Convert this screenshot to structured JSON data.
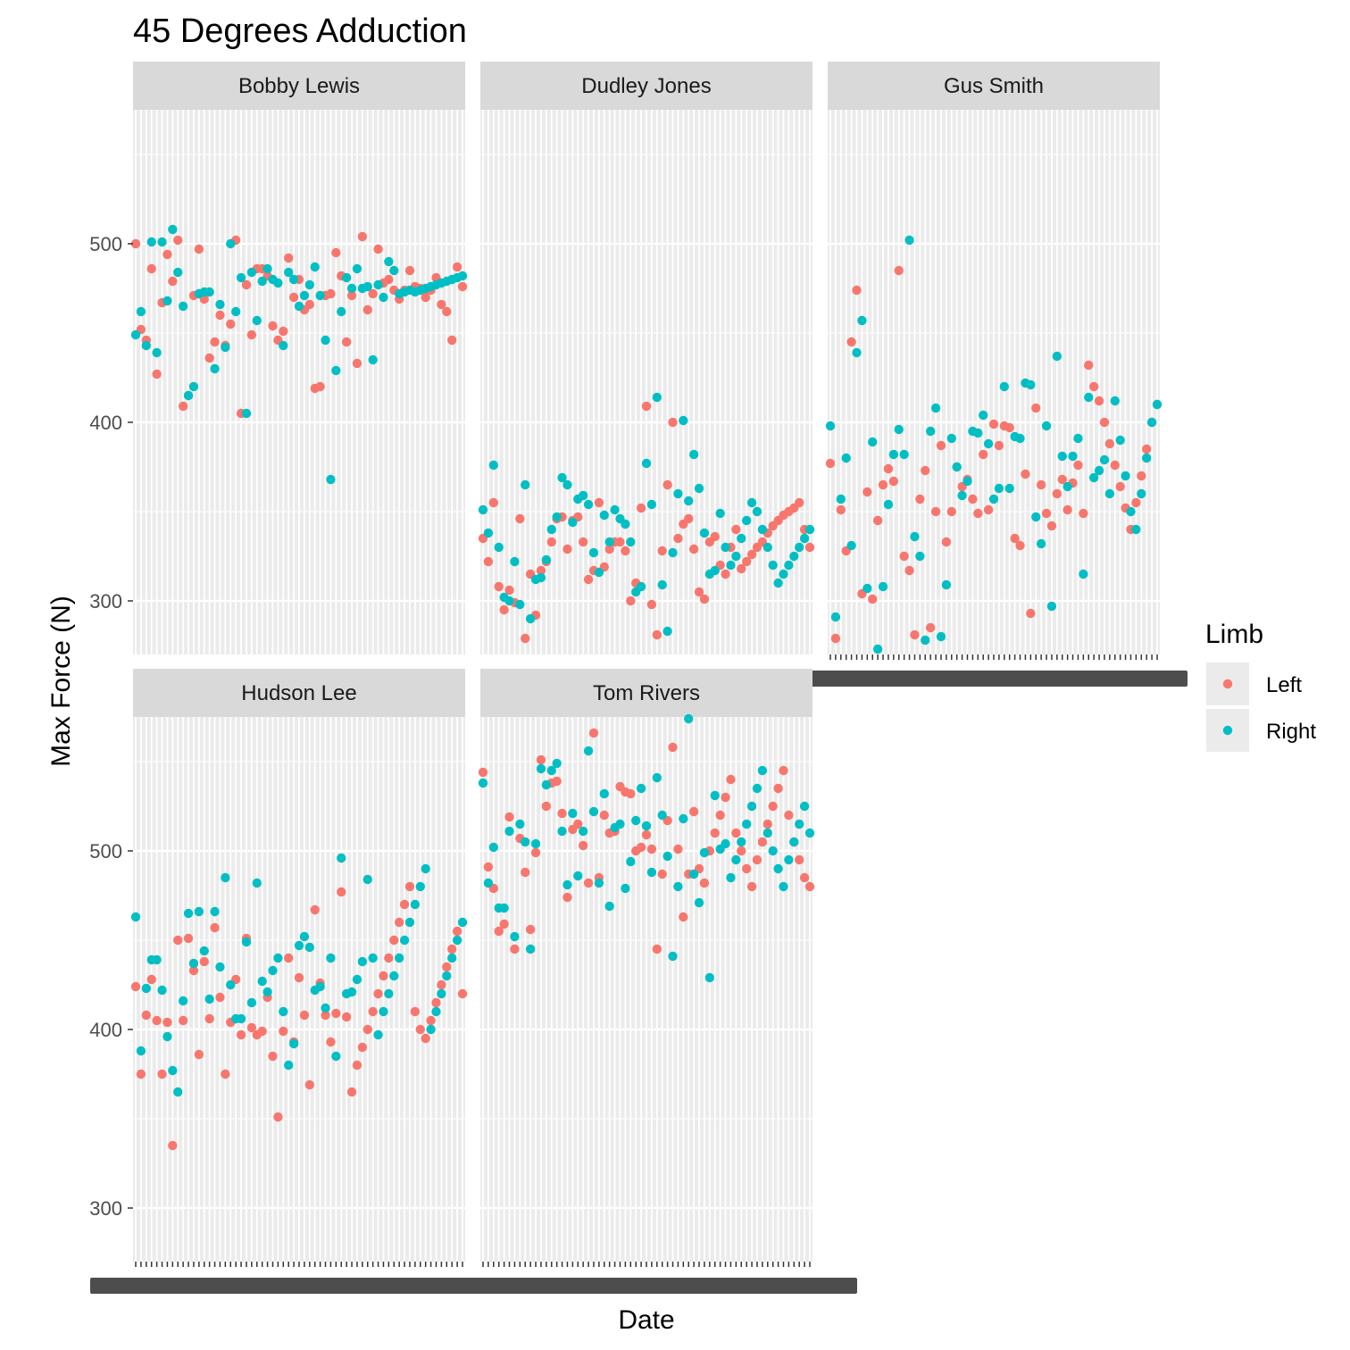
{
  "chart_data": {
    "type": "scatter",
    "title": "45 Degrees Adduction",
    "xlabel": "Date",
    "ylabel": "Max Force (N)",
    "ylim": [
      270,
      575
    ],
    "y_ticks": [
      300,
      400,
      500
    ],
    "grid": true,
    "x_axis_note": "discrete date axis, tick labels overprinted and illegible",
    "legend": {
      "title": "Limb",
      "position": "right",
      "entries": [
        {
          "name": "Left",
          "color": "#F8766D"
        },
        {
          "name": "Right",
          "color": "#00BFC4"
        }
      ]
    },
    "panels": [
      {
        "name": "Bobby Lewis",
        "n_dates": 63,
        "series": [
          {
            "name": "Left",
            "y": [
              500,
              452,
              446,
              486,
              427,
              467,
              494,
              479,
              502,
              409,
              415,
              471,
              497,
              469,
              436,
              445,
              460,
              443,
              455,
              502,
              405,
              477,
              449,
              486,
              486,
              482,
              454,
              446,
              451,
              492,
              470,
              480,
              463,
              466,
              419,
              420,
              471,
              472,
              495,
              482,
              445,
              471,
              433,
              504,
              463,
              472,
              497,
              478,
              480,
              474,
              469,
              474,
              485,
              476,
              475,
              470,
              474,
              481,
              466,
              462,
              446,
              487,
              476
            ]
          },
          {
            "name": "Right",
            "y": [
              449,
              462,
              443,
              501,
              439,
              501,
              468,
              508,
              484,
              465,
              415,
              420,
              472,
              473,
              473,
              430,
              466,
              442,
              500,
              462,
              481,
              405,
              484,
              457,
              479,
              486,
              480,
              478,
              443,
              484,
              480,
              465,
              471,
              477,
              487,
              471,
              446,
              368,
              429,
              462,
              481,
              475,
              486,
              475,
              476,
              435,
              477,
              470,
              490,
              485,
              472,
              473,
              474,
              473,
              474,
              475,
              476,
              477,
              478,
              479,
              480,
              481,
              482
            ]
          }
        ]
      },
      {
        "name": "Dudley Jones",
        "n_dates": 63,
        "series": [
          {
            "name": "Left",
            "y": [
              335,
              322,
              355,
              308,
              295,
              306,
              299,
              346,
              279,
              315,
              292,
              317,
              322,
              333,
              346,
              347,
              329,
              345,
              347,
              333,
              312,
              317,
              355,
              319,
              329,
              333,
              333,
              328,
              300,
              310,
              352,
              409,
              298,
              281,
              328,
              365,
              400,
              335,
              343,
              346,
              329,
              305,
              301,
              333,
              336,
              320,
              315,
              330,
              340,
              318,
              322,
              326,
              330,
              333,
              338,
              342,
              345,
              348,
              350,
              352,
              355,
              340,
              330
            ]
          },
          {
            "name": "Right",
            "y": [
              351,
              338,
              376,
              330,
              302,
              300,
              322,
              298,
              365,
              290,
              312,
              313,
              323,
              340,
              347,
              369,
              365,
              344,
              357,
              359,
              354,
              327,
              316,
              348,
              333,
              351,
              346,
              343,
              333,
              305,
              308,
              377,
              354,
              414,
              309,
              283,
              327,
              360,
              401,
              356,
              382,
              363,
              338,
              315,
              317,
              349,
              330,
              320,
              325,
              335,
              345,
              355,
              350,
              340,
              330,
              320,
              310,
              315,
              320,
              325,
              330,
              335,
              340
            ]
          }
        ]
      },
      {
        "name": "Gus Smith",
        "n_dates": 63,
        "series": [
          {
            "name": "Left",
            "y": [
              377,
              279,
              351,
              328,
              445,
              474,
              304,
              361,
              301,
              345,
              365,
              374,
              367,
              485,
              325,
              317,
              281,
              357,
              373,
              285,
              350,
              387,
              333,
              350,
              375,
              364,
              368,
              357,
              349,
              382,
              351,
              399,
              387,
              398,
              397,
              335,
              331,
              371,
              293,
              408,
              365,
              349,
              342,
              360,
              368,
              351,
              366,
              376,
              349,
              432,
              420,
              412,
              400,
              388,
              376,
              364,
              352,
              340,
              355,
              370,
              385,
              400,
              410
            ]
          },
          {
            "name": "Right",
            "y": [
              398,
              291,
              357,
              380,
              331,
              439,
              457,
              307,
              389,
              273,
              308,
              354,
              382,
              396,
              382,
              502,
              336,
              325,
              278,
              395,
              408,
              280,
              309,
              391,
              375,
              359,
              367,
              395,
              394,
              404,
              388,
              357,
              363,
              420,
              363,
              392,
              391,
              422,
              421,
              347,
              332,
              398,
              297,
              437,
              381,
              364,
              381,
              391,
              315,
              414,
              369,
              373,
              379,
              360,
              412,
              390,
              370,
              350,
              340,
              360,
              380,
              400,
              410
            ]
          }
        ]
      },
      {
        "name": "Hudson Lee",
        "n_dates": 63,
        "series": [
          {
            "name": "Left",
            "y": [
              424,
              375,
              408,
              428,
              405,
              375,
              404,
              335,
              450,
              405,
              451,
              433,
              386,
              438,
              406,
              457,
              418,
              375,
              404,
              428,
              397,
              451,
              401,
              397,
              399,
              418,
              385,
              351,
              399,
              440,
              393,
              429,
              408,
              369,
              467,
              426,
              408,
              393,
              409,
              477,
              407,
              365,
              380,
              390,
              400,
              410,
              420,
              430,
              440,
              450,
              460,
              470,
              480,
              410,
              400,
              395,
              405,
              415,
              425,
              435,
              445,
              455,
              420
            ]
          },
          {
            "name": "Right",
            "y": [
              463,
              388,
              423,
              439,
              439,
              422,
              396,
              377,
              365,
              416,
              465,
              437,
              466,
              444,
              417,
              466,
              435,
              485,
              425,
              406,
              406,
              449,
              415,
              482,
              427,
              421,
              433,
              440,
              410,
              380,
              392,
              447,
              452,
              446,
              422,
              424,
              412,
              440,
              385,
              496,
              420,
              421,
              428,
              438,
              484,
              440,
              397,
              410,
              420,
              430,
              440,
              450,
              460,
              470,
              480,
              490,
              400,
              410,
              420,
              430,
              440,
              450,
              460
            ]
          }
        ]
      },
      {
        "name": "Tom Rivers",
        "n_dates": 63,
        "series": [
          {
            "name": "Left",
            "y": [
              544,
              491,
              479,
              455,
              459,
              519,
              445,
              507,
              488,
              456,
              499,
              551,
              525,
              538,
              539,
              521,
              474,
              512,
              515,
              503,
              482,
              566,
              485,
              520,
              510,
              511,
              536,
              533,
              532,
              500,
              502,
              509,
              501,
              445,
              487,
              517,
              558,
              501,
              463,
              487,
              522,
              490,
              482,
              500,
              510,
              520,
              530,
              540,
              510,
              500,
              490,
              480,
              495,
              505,
              515,
              525,
              535,
              545,
              520,
              505,
              495,
              485,
              480
            ]
          },
          {
            "name": "Right",
            "y": [
              538,
              482,
              502,
              468,
              468,
              511,
              452,
              515,
              505,
              445,
              504,
              546,
              537,
              545,
              549,
              511,
              481,
              521,
              486,
              511,
              556,
              522,
              482,
              532,
              469,
              513,
              515,
              479,
              494,
              517,
              535,
              514,
              488,
              541,
              520,
              497,
              441,
              480,
              518,
              574,
              487,
              471,
              499,
              429,
              531,
              501,
              504,
              485,
              495,
              505,
              515,
              525,
              535,
              545,
              510,
              500,
              490,
              480,
              495,
              505,
              515,
              525,
              510
            ]
          }
        ]
      }
    ]
  }
}
